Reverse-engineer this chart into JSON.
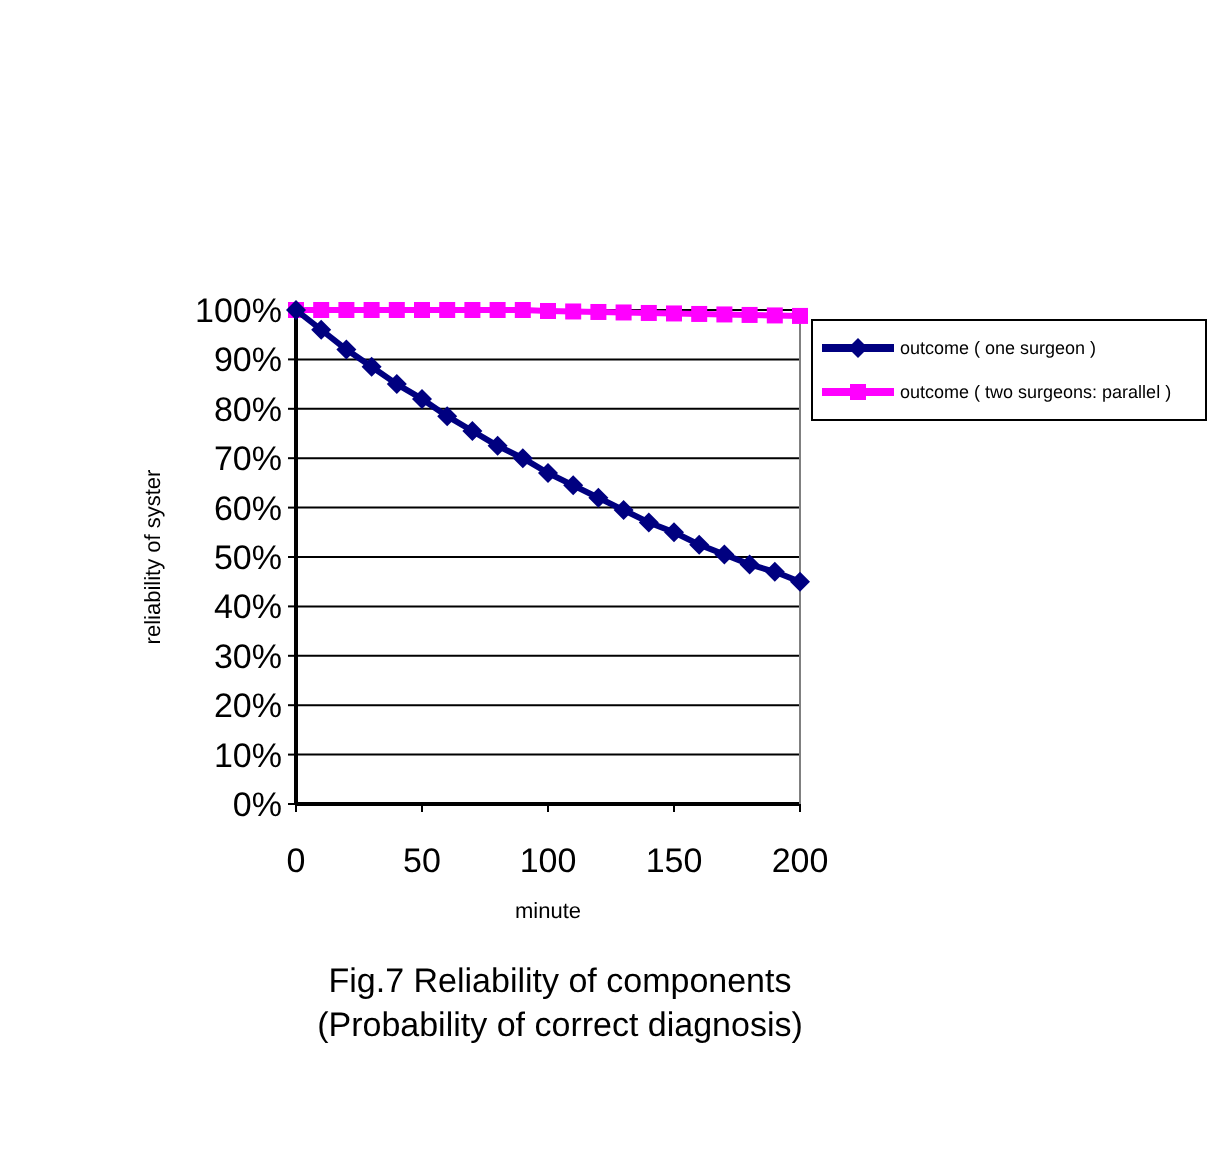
{
  "chart_data": {
    "type": "line",
    "title": "Fig.7 Reliability of components",
    "subtitle": "(Probability of correct diagnosis)",
    "xlabel": "minute",
    "ylabel": "reliability of syster",
    "x": [
      0,
      10,
      20,
      30,
      40,
      50,
      60,
      70,
      80,
      90,
      100,
      110,
      120,
      130,
      140,
      150,
      160,
      170,
      180,
      190,
      200
    ],
    "series": [
      {
        "name": "outcome ( one surgeon )",
        "color": "#000080",
        "marker": "diamond",
        "values": [
          100,
          96,
          92,
          88.5,
          85,
          82,
          78.5,
          75.5,
          72.5,
          70,
          67,
          64.5,
          62,
          59.5,
          57,
          55,
          52.5,
          50.5,
          48.5,
          47,
          45
        ]
      },
      {
        "name": "outcome ( two surgeons: parallel )",
        "color": "#ff00ff",
        "marker": "square",
        "values": [
          100,
          100,
          100,
          100,
          100,
          100,
          100,
          100,
          100,
          100,
          99.8,
          99.7,
          99.6,
          99.5,
          99.4,
          99.3,
          99.2,
          99.1,
          99,
          98.9,
          98.8
        ]
      }
    ],
    "xlim": [
      0,
      200
    ],
    "xticks": [
      0,
      50,
      100,
      150,
      200
    ],
    "ylim": [
      0,
      100
    ],
    "yticks": [
      {
        "value": 0,
        "label": "0%"
      },
      {
        "value": 10,
        "label": "10%"
      },
      {
        "value": 20,
        "label": "20%"
      },
      {
        "value": 30,
        "label": "30%"
      },
      {
        "value": 40,
        "label": "40%"
      },
      {
        "value": 50,
        "label": "50%"
      },
      {
        "value": 60,
        "label": "60%"
      },
      {
        "value": 70,
        "label": "70%"
      },
      {
        "value": 80,
        "label": "80%"
      },
      {
        "value": 90,
        "label": "90%"
      },
      {
        "value": 100,
        "label": "100%"
      }
    ],
    "grid": "y",
    "legend": "top right"
  }
}
